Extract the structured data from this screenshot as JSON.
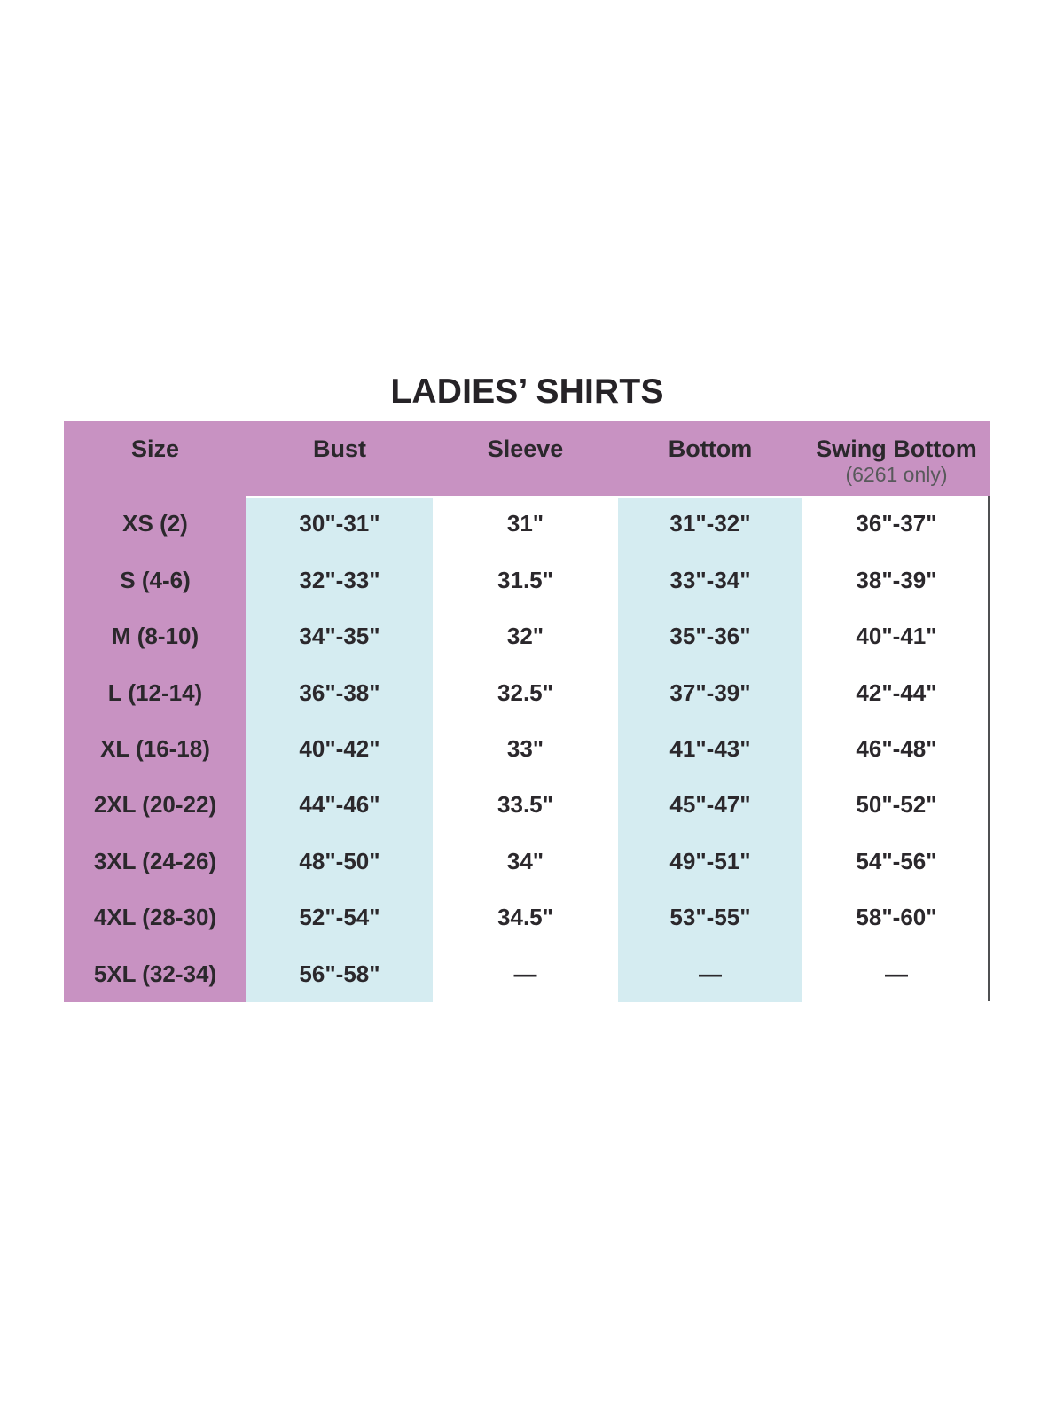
{
  "page": {
    "title": "LADIES’ SHIRTS"
  },
  "table": {
    "headers": {
      "size": "Size",
      "bust": "Bust",
      "sleeve": "Sleeve",
      "bottom": "Bottom",
      "swing_bottom": "Swing Bottom",
      "swing_bottom_note": "(6261 only)"
    },
    "rows": [
      {
        "size": "XS (2)",
        "bust": "30\"-31\"",
        "sleeve": "31\"",
        "bottom": "31\"-32\"",
        "swing_bottom": "36\"-37\""
      },
      {
        "size": "S (4-6)",
        "bust": "32\"-33\"",
        "sleeve": "31.5\"",
        "bottom": "33\"-34\"",
        "swing_bottom": "38\"-39\""
      },
      {
        "size": "M (8-10)",
        "bust": "34\"-35\"",
        "sleeve": "32\"",
        "bottom": "35\"-36\"",
        "swing_bottom": "40\"-41\""
      },
      {
        "size": "L (12-14)",
        "bust": "36\"-38\"",
        "sleeve": "32.5\"",
        "bottom": "37\"-39\"",
        "swing_bottom": "42\"-44\""
      },
      {
        "size": "XL (16-18)",
        "bust": "40\"-42\"",
        "sleeve": "33\"",
        "bottom": "41\"-43\"",
        "swing_bottom": "46\"-48\""
      },
      {
        "size": "2XL (20-22)",
        "bust": "44\"-46\"",
        "sleeve": "33.5\"",
        "bottom": "45\"-47\"",
        "swing_bottom": "50\"-52\""
      },
      {
        "size": "3XL (24-26)",
        "bust": "48\"-50\"",
        "sleeve": "34\"",
        "bottom": "49\"-51\"",
        "swing_bottom": "54\"-56\""
      },
      {
        "size": "4XL (28-30)",
        "bust": "52\"-54\"",
        "sleeve": "34.5\"",
        "bottom": "53\"-55\"",
        "swing_bottom": "58\"-60\""
      },
      {
        "size": "5XL (32-34)",
        "bust": "56\"-58\"",
        "sleeve": "—",
        "bottom": "—",
        "swing_bottom": "—"
      }
    ]
  },
  "colors": {
    "header_pink": "#c892c2",
    "stripe_blue": "#d5ecf1",
    "text_dark": "#2b282c",
    "note_gray": "#58595b",
    "border_gray": "#4f5052"
  },
  "chart_data": {
    "type": "table",
    "title": "LADIES’ SHIRTS",
    "columns": [
      "Size",
      "Bust",
      "Sleeve",
      "Bottom",
      "Swing Bottom (6261 only)"
    ],
    "rows": [
      [
        "XS (2)",
        "30\"-31\"",
        "31\"",
        "31\"-32\"",
        "36\"-37\""
      ],
      [
        "S (4-6)",
        "32\"-33\"",
        "31.5\"",
        "33\"-34\"",
        "38\"-39\""
      ],
      [
        "M (8-10)",
        "34\"-35\"",
        "32\"",
        "35\"-36\"",
        "40\"-41\""
      ],
      [
        "L (12-14)",
        "36\"-38\"",
        "32.5\"",
        "37\"-39\"",
        "42\"-44\""
      ],
      [
        "XL (16-18)",
        "40\"-42\"",
        "33\"",
        "41\"-43\"",
        "46\"-48\""
      ],
      [
        "2XL (20-22)",
        "44\"-46\"",
        "33.5\"",
        "45\"-47\"",
        "50\"-52\""
      ],
      [
        "3XL (24-26)",
        "48\"-50\"",
        "34\"",
        "49\"-51\"",
        "54\"-56\""
      ],
      [
        "4XL (28-30)",
        "52\"-54\"",
        "34.5\"",
        "53\"-55\"",
        "58\"-60\""
      ],
      [
        "5XL (32-34)",
        "56\"-58\"",
        "—",
        "—",
        "—"
      ]
    ]
  }
}
